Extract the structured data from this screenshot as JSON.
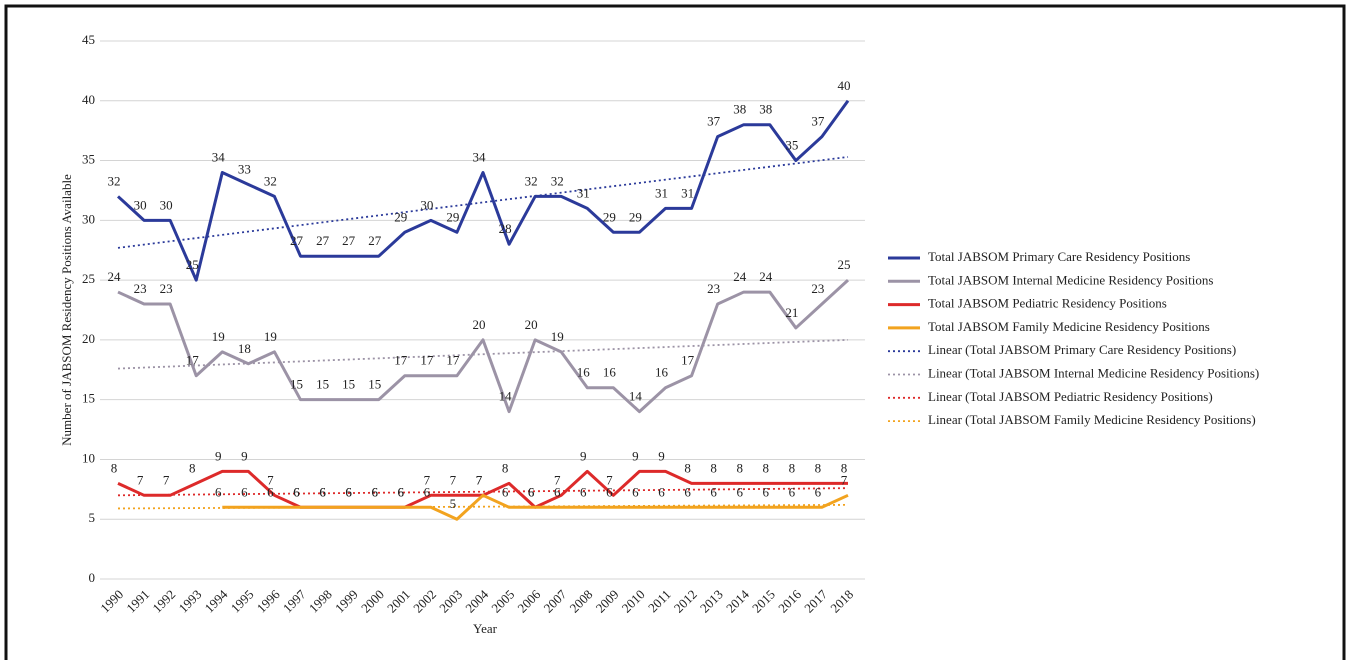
{
  "chart_data": {
    "type": "line",
    "y_label": "Number of JABSOM Residency  Positions Available",
    "x_label": "Year",
    "categories": [
      "1990",
      "1991",
      "1992",
      "1993",
      "1994",
      "1995",
      "1996",
      "1997",
      "1998",
      "1999",
      "2000",
      "2001",
      "2002",
      "2003",
      "2004",
      "2005",
      "2006",
      "2007",
      "2008",
      "2009",
      "2010",
      "2011",
      "2012",
      "2013",
      "2014",
      "2015",
      "2016",
      "2017",
      "2018"
    ],
    "ylim": [
      0,
      45
    ],
    "yticks": [
      0,
      5,
      10,
      15,
      20,
      25,
      30,
      35,
      40,
      45
    ],
    "grid": true,
    "series": [
      {
        "name": "Total JABSOM Primary Care Residency Positions",
        "color": "#2b3a9a",
        "values": [
          32,
          30,
          30,
          25,
          34,
          33,
          32,
          27,
          27,
          27,
          27,
          29,
          30,
          29,
          34,
          28,
          32,
          32,
          31,
          29,
          29,
          31,
          31,
          37,
          38,
          38,
          35,
          37,
          40
        ]
      },
      {
        "name": "Total JABSOM Internal Medicine Residency Positions",
        "color": "#9c93a6",
        "values": [
          24,
          23,
          23,
          17,
          19,
          18,
          19,
          15,
          15,
          15,
          15,
          17,
          17,
          17,
          20,
          14,
          20,
          19,
          16,
          16,
          14,
          16,
          17,
          23,
          24,
          24,
          21,
          23,
          25
        ]
      },
      {
        "name": "Total JABSOM Pediatric Residency Positions",
        "color": "#dd2a2a",
        "values": [
          8,
          7,
          7,
          8,
          9,
          9,
          7,
          6,
          6,
          6,
          6,
          6,
          7,
          7,
          7,
          8,
          6,
          7,
          9,
          7,
          9,
          9,
          8,
          8,
          8,
          8,
          8,
          8,
          8
        ]
      },
      {
        "name": "Total JABSOM Family Medicine Residency Positions",
        "color": "#f2a31f",
        "values": [
          null,
          null,
          null,
          null,
          6,
          6,
          6,
          6,
          6,
          6,
          6,
          6,
          6,
          5,
          7,
          6,
          6,
          6,
          6,
          6,
          6,
          6,
          6,
          6,
          6,
          6,
          6,
          6,
          7
        ]
      }
    ],
    "trendlines": [
      {
        "name": "Linear (Total JABSOM Primary Care Residency Positions)",
        "color": "#2b3a9a",
        "values": [
          27.7,
          35.3
        ]
      },
      {
        "name": "Linear (Total JABSOM Internal Medicine Residency Positions)",
        "color": "#9c93a6",
        "values": [
          17.6,
          20.0
        ]
      },
      {
        "name": "Linear (Total JABSOM Pediatric Residency Positions)",
        "color": "#dd2a2a",
        "values": [
          7.0,
          7.6
        ]
      },
      {
        "name": "Linear (Total JABSOM Family Medicine Residency Positions)",
        "color": "#f2a31f",
        "values": [
          5.9,
          6.2
        ]
      }
    ]
  }
}
